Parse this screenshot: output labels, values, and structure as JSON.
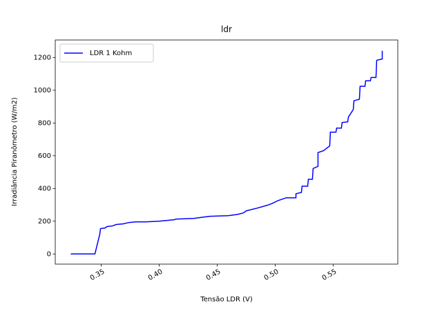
{
  "chart_data": {
    "type": "line",
    "title": "ldr",
    "xlabel": "Tensão LDR (V)",
    "ylabel": "Irradiância Piranômetro (W/m2)",
    "x": [
      0.3238,
      0.3446,
      0.3488,
      0.3494,
      0.3536,
      0.3548,
      0.3595,
      0.3631,
      0.369,
      0.3738,
      0.3798,
      0.3881,
      0.4,
      0.4131,
      0.4143,
      0.4298,
      0.4345,
      0.444,
      0.4595,
      0.4678,
      0.4726,
      0.475,
      0.4798,
      0.4845,
      0.4929,
      0.4976,
      0.5024,
      0.5095,
      0.5179,
      0.5179,
      0.5226,
      0.5232,
      0.528,
      0.5286,
      0.5321,
      0.5327,
      0.5369,
      0.5369,
      0.5417,
      0.547,
      0.5476,
      0.5524,
      0.553,
      0.5571,
      0.5577,
      0.5625,
      0.5631,
      0.5673,
      0.5679,
      0.5726,
      0.5732,
      0.5774,
      0.578,
      0.5821,
      0.5827,
      0.5869,
      0.5875,
      0.5923,
      0.5923
    ],
    "series": [
      {
        "name": "LDR 1 Kohm",
        "color": "#0000ff",
        "values": [
          0,
          0,
          121,
          155,
          159,
          167,
          171,
          180,
          184,
          192,
          196,
          196,
          200,
          209,
          213,
          217,
          222,
          230,
          234,
          242,
          251,
          263,
          272,
          280,
          297,
          309,
          326,
          343,
          343,
          368,
          376,
          414,
          414,
          456,
          456,
          522,
          535,
          619,
          631,
          660,
          744,
          744,
          769,
          769,
          803,
          807,
          836,
          882,
          936,
          945,
          1024,
          1024,
          1058,
          1058,
          1078,
          1078,
          1183,
          1191,
          1241
        ]
      }
    ],
    "xlim": [
      0.3104,
      0.6057
    ],
    "ylim": [
      -62,
      1307
    ],
    "xticks": [
      0.35,
      {
        "value": 0.4,
        "label": "0.40"
      },
      0.45,
      {
        "value": 0.5,
        "label": "0.50"
      },
      0.55
    ],
    "yticks": [
      0,
      200,
      400,
      600,
      800,
      1000,
      1200
    ],
    "legend": "upper left",
    "grid": false
  }
}
